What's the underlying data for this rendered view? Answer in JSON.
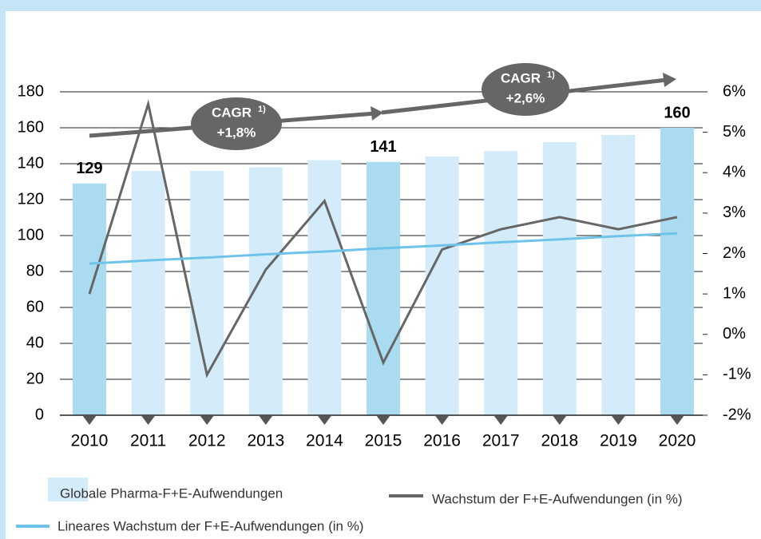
{
  "chart_data": {
    "type": "bar",
    "categories": [
      "2010",
      "2011",
      "2012",
      "2013",
      "2014",
      "2015",
      "2016",
      "2017",
      "2018",
      "2019",
      "2020"
    ],
    "series": [
      {
        "name": "Globale Pharma-F+E-Aufwendungen",
        "type": "bar",
        "color": "#d4ecf9",
        "highlight_color": "#aadbf0",
        "values": [
          129,
          136,
          136,
          138,
          142,
          141,
          144,
          147,
          152,
          156,
          160
        ],
        "highlight": [
          0,
          5,
          10
        ]
      },
      {
        "name": "Wachstum der F+E-Aufwendungen (in %)",
        "type": "line",
        "axis": "y2",
        "color": "#666666",
        "values": [
          1.0,
          5.7,
          -1.0,
          1.6,
          3.3,
          -0.7,
          2.1,
          2.6,
          2.9,
          2.6,
          2.9
        ]
      },
      {
        "name": "Lineares Wachstum der F+E-Aufwendungen (in %)",
        "type": "line",
        "axis": "y2",
        "color": "#6ec3ea",
        "values": [
          1.75,
          1.83,
          1.9,
          1.98,
          2.05,
          2.13,
          2.2,
          2.28,
          2.35,
          2.43,
          2.5
        ]
      }
    ],
    "ylim": [
      0,
      180
    ],
    "yticks": [
      0,
      20,
      40,
      60,
      80,
      100,
      120,
      140,
      160,
      180
    ],
    "y2lim": [
      -2,
      6
    ],
    "y2ticks": [
      {
        "value": -2,
        "label": "-2%"
      },
      {
        "value": -1,
        "label": "-1%"
      },
      {
        "value": 0,
        "label": "0%"
      },
      {
        "value": 1,
        "label": "1%"
      },
      {
        "value": 2,
        "label": "2%"
      },
      {
        "value": 3,
        "label": "3%"
      },
      {
        "value": 4,
        "label": "4%"
      },
      {
        "value": 5,
        "label": "5%"
      },
      {
        "value": 6,
        "label": "6%"
      }
    ],
    "grid": true,
    "annotations": [
      {
        "label": "CAGR",
        "superscript": "1)",
        "value_label": "+1,8%"
      },
      {
        "label": "CAGR",
        "superscript": "1)",
        "value_label": "+2,6%"
      }
    ]
  }
}
